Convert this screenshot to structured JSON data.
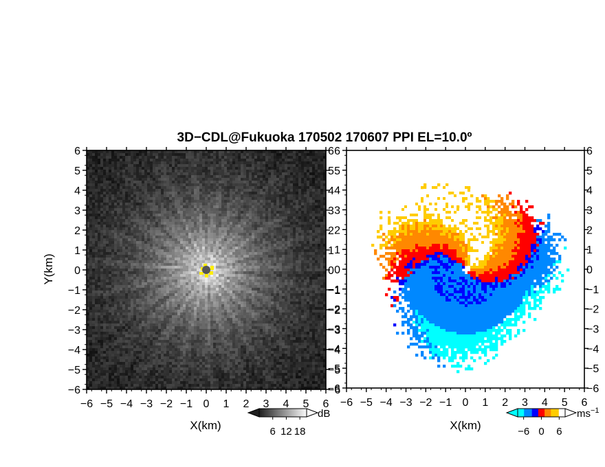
{
  "chart_data": {
    "title": "3D−CDL@Fukuoka 170502 170607 PPI EL=10.0º",
    "panels": [
      {
        "type": "heatmap",
        "variable": "reflectivity (grayscale)",
        "xlabel": "X(km)",
        "ylabel": "Y(km)",
        "xlim": [
          -6,
          6
        ],
        "ylim": [
          -6,
          6
        ],
        "xticks": [
          "−6",
          "−5",
          "−4",
          "−3",
          "−2",
          "−1",
          "0",
          "1",
          "2",
          "3",
          "4",
          "5",
          "6"
        ],
        "yticks": [
          "6",
          "5",
          "4",
          "3",
          "2",
          "1",
          "0",
          "−1",
          "−2",
          "−3",
          "−4",
          "−5",
          "−6"
        ],
        "colorbar": {
          "unit": "dB",
          "ticks": [
            "6",
            "12",
            "18"
          ],
          "range": [
            0,
            21
          ]
        },
        "features": {
          "center_marker_color": "#ffee00",
          "center_dot_color": "#555555"
        }
      },
      {
        "type": "heatmap",
        "variable": "radial velocity",
        "xlabel": "X(km)",
        "xlim": [
          -6,
          6
        ],
        "ylim": [
          -6,
          6
        ],
        "xticks": [
          "−6",
          "−5",
          "−4",
          "−3",
          "−2",
          "−1",
          "0",
          "1",
          "2",
          "3",
          "4",
          "5",
          "6"
        ],
        "yticks": [
          "6",
          "5",
          "4",
          "3",
          "2",
          "1",
          "0",
          "−1",
          "−2",
          "−3",
          "−4",
          "−5",
          "−6"
        ],
        "colorbar": {
          "unit_base": "ms",
          "unit_exp": "−1",
          "ticks": [
            "−6",
            "0",
            "6"
          ],
          "range": [
            -8,
            8
          ]
        },
        "palette": [
          "#00ffff",
          "#0088ff",
          "#0000ff",
          "#ff0000",
          "#ff8800",
          "#ffcc00",
          "#ffffff"
        ]
      }
    ]
  }
}
